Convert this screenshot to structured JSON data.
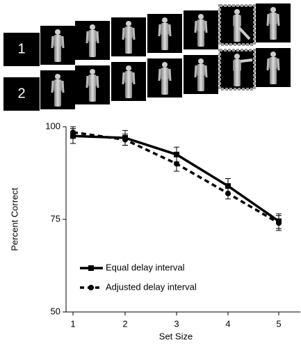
{
  "panel": {
    "rows": [
      "1",
      "2"
    ]
  },
  "chart_data": {
    "type": "line",
    "xlabel": "Set Size",
    "ylabel": "Percent Correct",
    "categories": [
      "1",
      "2",
      "3",
      "4",
      "5"
    ],
    "ylim": [
      50,
      100
    ],
    "yticks": [
      50,
      75,
      100
    ],
    "legend": "lower-left",
    "series": [
      {
        "name": "Equal delay interval",
        "color": "#000000",
        "dash": "solid",
        "marker": "square",
        "values": [
          97.5,
          97,
          92.5,
          84,
          74.5
        ],
        "errors": [
          2,
          2,
          2,
          2,
          2
        ]
      },
      {
        "name": "Adjusted delay interval",
        "color": "#000000",
        "dash": "dashed",
        "marker": "circle",
        "values": [
          98.5,
          96.5,
          90,
          82,
          74
        ],
        "errors": [
          1.5,
          1.5,
          2,
          1.5,
          2
        ]
      }
    ]
  }
}
